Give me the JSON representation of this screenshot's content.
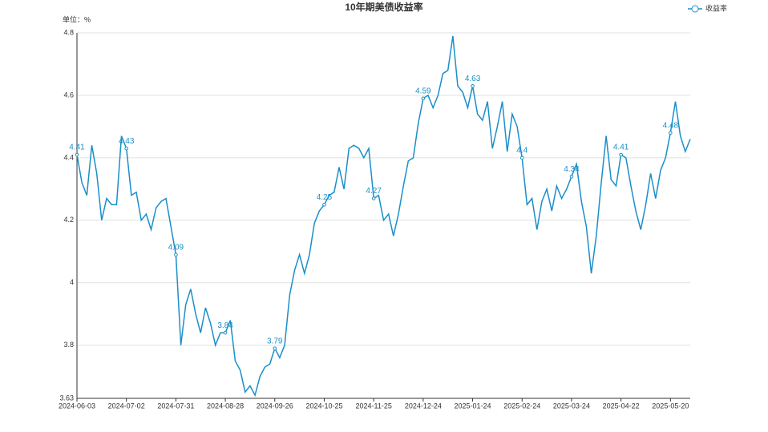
{
  "chart_data": {
    "type": "line",
    "title": "10年期美债收益率",
    "subtitle": "单位：%",
    "categories": [
      "2024-06-03",
      null,
      null,
      null,
      null,
      null,
      null,
      null,
      null,
      null,
      "2024-07-02",
      null,
      null,
      null,
      null,
      null,
      null,
      null,
      null,
      null,
      "2024-07-31",
      null,
      null,
      null,
      null,
      null,
      null,
      null,
      null,
      null,
      "2024-08-28",
      null,
      null,
      null,
      null,
      null,
      null,
      null,
      null,
      null,
      "2024-09-26",
      null,
      null,
      null,
      null,
      null,
      null,
      null,
      null,
      null,
      "2024-10-25",
      null,
      null,
      null,
      null,
      null,
      null,
      null,
      null,
      null,
      "2024-11-25",
      null,
      null,
      null,
      null,
      null,
      null,
      null,
      null,
      null,
      "2024-12-24",
      null,
      null,
      null,
      null,
      null,
      null,
      null,
      null,
      null,
      "2025-01-24",
      null,
      null,
      null,
      null,
      null,
      null,
      null,
      null,
      null,
      "2025-02-24",
      null,
      null,
      null,
      null,
      null,
      null,
      null,
      null,
      null,
      "2025-03-24",
      null,
      null,
      null,
      null,
      null,
      null,
      null,
      null,
      null,
      "2025-04-22",
      null,
      null,
      null,
      null,
      null,
      null,
      null,
      null,
      null,
      "2025-05-20",
      null,
      null,
      null,
      null
    ],
    "series": [
      {
        "name": "收益率",
        "color": "#1a8fc9",
        "values": [
          4.41,
          4.32,
          4.28,
          4.44,
          4.35,
          4.2,
          4.27,
          4.25,
          4.25,
          4.47,
          4.43,
          4.28,
          4.29,
          4.2,
          4.22,
          4.17,
          4.24,
          4.26,
          4.27,
          4.18,
          4.09,
          3.8,
          3.93,
          3.98,
          3.9,
          3.84,
          3.92,
          3.87,
          3.8,
          3.84,
          3.84,
          3.88,
          3.75,
          3.72,
          3.65,
          3.67,
          3.64,
          3.7,
          3.73,
          3.74,
          3.79,
          3.76,
          3.8,
          3.96,
          4.04,
          4.09,
          4.03,
          4.09,
          4.19,
          4.23,
          4.25,
          4.28,
          4.29,
          4.37,
          4.3,
          4.43,
          4.44,
          4.43,
          4.4,
          4.43,
          4.27,
          4.28,
          4.2,
          4.22,
          4.15,
          4.22,
          4.31,
          4.39,
          4.4,
          4.51,
          4.59,
          4.6,
          4.56,
          4.6,
          4.67,
          4.68,
          4.79,
          4.63,
          4.61,
          4.56,
          4.63,
          4.54,
          4.52,
          4.58,
          4.43,
          4.5,
          4.58,
          4.42,
          4.54,
          4.5,
          4.4,
          4.25,
          4.27,
          4.17,
          4.26,
          4.3,
          4.23,
          4.31,
          4.27,
          4.3,
          4.34,
          4.38,
          4.26,
          4.18,
          4.03,
          4.15,
          4.32,
          4.47,
          4.33,
          4.31,
          4.41,
          4.4,
          4.31,
          4.23,
          4.17,
          4.25,
          4.35,
          4.27,
          4.36,
          4.4,
          4.48,
          4.58,
          4.47,
          4.42,
          4.46
        ],
        "value_labels": [
          "4.41",
          null,
          null,
          null,
          null,
          null,
          null,
          null,
          null,
          null,
          "4.43",
          null,
          null,
          null,
          null,
          null,
          null,
          null,
          null,
          null,
          "4.09",
          null,
          null,
          null,
          null,
          null,
          null,
          null,
          null,
          null,
          "3.84",
          null,
          null,
          null,
          null,
          null,
          null,
          null,
          null,
          null,
          "3.79",
          null,
          null,
          null,
          null,
          null,
          null,
          null,
          null,
          null,
          "4.25",
          null,
          null,
          null,
          null,
          null,
          null,
          null,
          null,
          null,
          "4.27",
          null,
          null,
          null,
          null,
          null,
          null,
          null,
          null,
          null,
          "4.59",
          null,
          null,
          null,
          null,
          null,
          null,
          null,
          null,
          null,
          "4.63",
          null,
          null,
          null,
          null,
          null,
          null,
          null,
          null,
          null,
          "4.4",
          null,
          null,
          null,
          null,
          null,
          null,
          null,
          null,
          null,
          "4.34",
          null,
          null,
          null,
          null,
          null,
          null,
          null,
          null,
          null,
          "4.41",
          null,
          null,
          null,
          null,
          null,
          null,
          null,
          null,
          null,
          "4.48",
          null,
          null,
          null,
          null
        ]
      }
    ],
    "ylim": [
      3.63,
      4.8
    ],
    "yticks": [
      3.63,
      3.8,
      4,
      4.2,
      4.4,
      4.6,
      4.8
    ],
    "grid": true,
    "legend": "top-right"
  }
}
